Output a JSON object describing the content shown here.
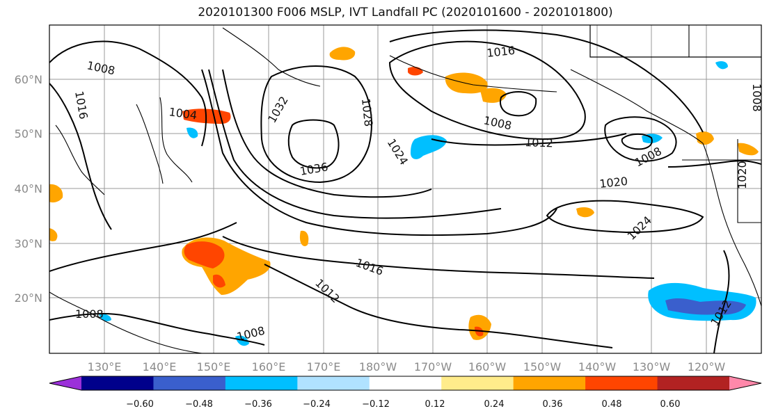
{
  "title": "2020101300 F006 MSLP, IVT Landfall PC (2020101600 - 2020101800)",
  "axes": {
    "longitude_ticks": [
      "130°E",
      "140°E",
      "150°E",
      "160°E",
      "170°E",
      "180°W",
      "170°W",
      "160°W",
      "150°W",
      "140°W",
      "130°W",
      "120°W"
    ],
    "latitude_ticks": [
      "60°N",
      "50°N",
      "40°N",
      "30°N",
      "20°N"
    ]
  },
  "contour_labels": [
    "1008",
    "1016",
    "1004",
    "1032",
    "1028",
    "1036",
    "1024",
    "1016",
    "1008",
    "1012",
    "1020",
    "1008",
    "1024",
    "1016",
    "1012",
    "1008",
    "1008",
    "1012",
    "1020",
    "1008"
  ],
  "colorbar": {
    "ticks": [
      "−0.60",
      "−0.48",
      "−0.36",
      "−0.24",
      "−0.12",
      "0.12",
      "0.24",
      "0.36",
      "0.48",
      "0.60"
    ],
    "colors": [
      "#9b30d9",
      "#00008b",
      "#3a5fcd",
      "#00bfff",
      "#b0e2ff",
      "#ffffff",
      "#ffec8b",
      "#ffa500",
      "#ff4500",
      "#b22222",
      "#ff88aa"
    ]
  }
}
